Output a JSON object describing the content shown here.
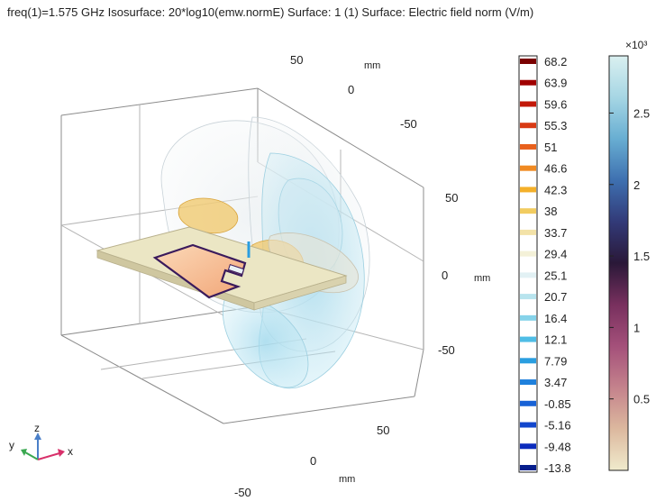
{
  "header": {
    "title": "freq(1)=1.575 GHz  Isosurface: 20*log10(emw.normE)  Surface: 1 (1)  Surface: Electric field norm (V/m)"
  },
  "chart_data": {
    "type": "3d-field-plot",
    "frequency": "1.575 GHz",
    "axes": {
      "unit_label": "mm",
      "x_ticks": [
        "-50",
        "0",
        "50"
      ],
      "y_ticks": [
        "-50",
        "0",
        "50"
      ],
      "z_ticks": [
        "-50",
        "0",
        "50"
      ],
      "triad": {
        "x": "x",
        "y": "y",
        "z": "z"
      }
    },
    "isosurface_legend": {
      "expression": "20*log10(emw.normE)",
      "levels": [
        68.2,
        63.9,
        59.6,
        55.3,
        51,
        46.6,
        42.3,
        38,
        33.7,
        29.4,
        25.1,
        20.7,
        16.4,
        12.1,
        7.79,
        3.47,
        -0.85,
        -5.16,
        -9.48,
        -13.8
      ],
      "colors": [
        "#7a0000",
        "#a00000",
        "#c21808",
        "#d83a14",
        "#e8601c",
        "#f08a22",
        "#f4b02a",
        "#f2cc60",
        "#f3e2a8",
        "#f4f1d8",
        "#e2f1f4",
        "#b8e4ee",
        "#86d3ea",
        "#4fbde6",
        "#2a9ee0",
        "#1e80dc",
        "#1862d6",
        "#1246cc",
        "#0c2cbc",
        "#061e8c"
      ]
    },
    "surface_colorbar": {
      "multiplier": "×10³",
      "ticks": [
        0.5,
        1,
        1.5,
        2,
        2.5
      ],
      "range": [
        0,
        2.9
      ],
      "colors": [
        "#f0ebcc",
        "#dcb89e",
        "#c4828c",
        "#a4507a",
        "#78305e",
        "#2a1838",
        "#323a78",
        "#3e70b0",
        "#68aed2",
        "#a6d6e4",
        "#daf0f0"
      ]
    }
  }
}
